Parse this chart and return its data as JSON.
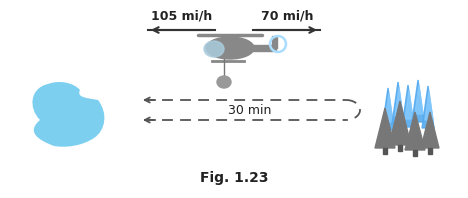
{
  "title": "Fig. 1.23",
  "speed_left": "105 mi/h",
  "speed_right": "70 mi/h",
  "time_label": "30 min",
  "bg_color": "#ffffff",
  "arrow_color": "#333333",
  "dashed_color": "#555555",
  "label_fontsize": 9,
  "title_fontsize": 10,
  "lake_color": "#7dcff0",
  "heli_color": "#888888",
  "heli_cockpit": "#aaccdd",
  "tree_color": "#777777",
  "fire_color": "#55aaee",
  "fire_color2": "#88ccff",
  "bucket_color": "#999999",
  "rotor_color": "#aaddff"
}
